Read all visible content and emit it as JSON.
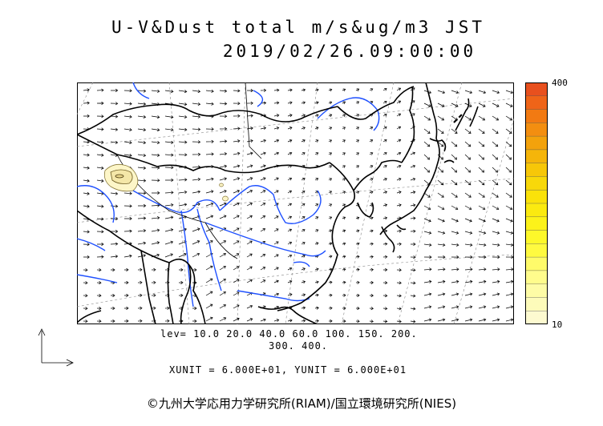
{
  "title": {
    "line1": "U-V&Dust total m/s&ug/m3 JST",
    "line2": "2019/02/26.09:00:00"
  },
  "scale": {
    "max_label": "400",
    "min_label": "10",
    "colors": [
      "#e8501e",
      "#ef6418",
      "#f27a12",
      "#f38e10",
      "#f3a20c",
      "#f5b50a",
      "#f7c708",
      "#f8d80a",
      "#fae20a",
      "#fbea10",
      "#fcf21a",
      "#fdf82a",
      "#fffa40",
      "#fffb6a",
      "#fffc8c",
      "#fefca6",
      "#fdfbba",
      "#fdfad0"
    ]
  },
  "levels": {
    "line1": "lev= 10.0 20.0 40.0 60.0 100. 150. 200.",
    "line2": "300. 400."
  },
  "units": "XUNIT = 6.000E+01, YUNIT = 6.000E+01",
  "copyright": "©九州大学応用力学研究所(RIAM)/国立環境研究所(NIES)"
}
